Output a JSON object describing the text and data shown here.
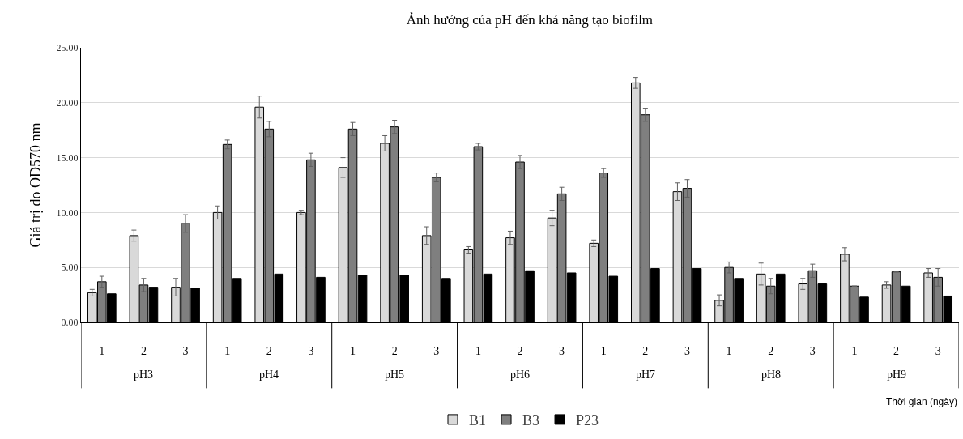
{
  "chart_data": {
    "type": "bar",
    "title": "Ảnh hưởng của pH đến khả năng tạo biofilm",
    "xlabel": "Thời gian (ngày)",
    "ylabel": "Giá trị đo OD570 nm",
    "categories": [
      "1",
      "2",
      "3",
      "1",
      "2",
      "3",
      "1",
      "2",
      "3",
      "1",
      "2",
      "3",
      "1",
      "2",
      "3",
      "1",
      "2",
      "3",
      "1",
      "2",
      "3"
    ],
    "annotations": [
      "pH3",
      "pH4",
      "pH5",
      "pH6",
      "pH7",
      "pH8",
      "pH9"
    ],
    "series": [
      {
        "name": "B1",
        "color": "#d9d9d9",
        "values": [
          2.7,
          7.9,
          3.2,
          10.0,
          19.6,
          10.0,
          14.1,
          16.3,
          7.9,
          6.6,
          7.7,
          9.5,
          7.2,
          21.8,
          11.9,
          2.0,
          4.4,
          3.5,
          6.2,
          3.4,
          4.5
        ],
        "errors": [
          0.3,
          0.5,
          0.8,
          0.6,
          1.0,
          0.2,
          0.9,
          0.7,
          0.8,
          0.3,
          0.6,
          0.7,
          0.3,
          0.5,
          0.8,
          0.5,
          1.0,
          0.5,
          0.6,
          0.3,
          0.4
        ]
      },
      {
        "name": "B3",
        "color": "#7f7f7f",
        "values": [
          3.7,
          3.4,
          9.0,
          16.2,
          17.6,
          14.8,
          17.6,
          17.8,
          13.2,
          16.0,
          14.6,
          11.7,
          13.6,
          18.9,
          12.2,
          5.0,
          3.3,
          4.7,
          3.3,
          4.6,
          4.1
        ],
        "errors": [
          0.5,
          0.6,
          0.8,
          0.4,
          0.7,
          0.6,
          0.6,
          0.6,
          0.4,
          0.3,
          0.6,
          0.6,
          0.4,
          0.6,
          0.8,
          0.5,
          0.7,
          0.6,
          0.0,
          0.0,
          0.8
        ]
      },
      {
        "name": "P23",
        "color": "#000000",
        "values": [
          2.6,
          3.2,
          3.1,
          4.0,
          4.4,
          4.1,
          4.3,
          4.3,
          4.0,
          4.4,
          4.7,
          4.5,
          4.2,
          4.9,
          4.9,
          4.0,
          4.4,
          3.5,
          2.3,
          3.3,
          2.4
        ]
      }
    ],
    "ylim": [
      0,
      25
    ],
    "yticks": [
      {
        "value": 0,
        "label": "0.00"
      },
      {
        "value": 5,
        "label": "5.00"
      },
      {
        "value": 10,
        "label": "10.00"
      },
      {
        "value": 15,
        "label": "15.00"
      },
      {
        "value": 20,
        "label": "20.00"
      },
      {
        "value": 25,
        "label": "25.00"
      }
    ],
    "grid": "y",
    "legend": "bottom"
  }
}
